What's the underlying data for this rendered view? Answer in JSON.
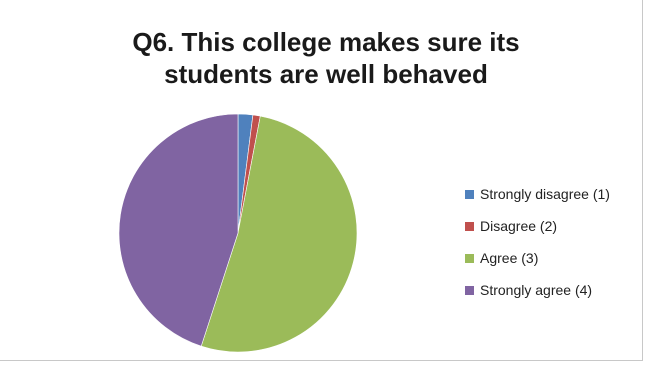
{
  "chart_data": {
    "type": "pie",
    "title_lines": [
      "Q6. This college makes sure its",
      "students are well behaved"
    ],
    "categories": [
      "Strongly disagree (1)",
      "Disagree (2)",
      "Agree (3)",
      "Strongly agree (4)"
    ],
    "values": [
      2,
      1,
      52,
      45
    ],
    "colors": [
      "#4f81bd",
      "#c0504d",
      "#9bbb59",
      "#8064a2"
    ],
    "legend_position": "right"
  }
}
